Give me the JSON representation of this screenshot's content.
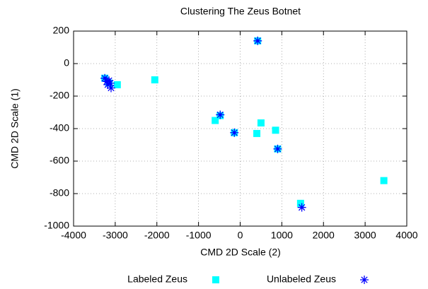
{
  "chart_data": {
    "type": "scatter",
    "title": "Clustering The Zeus Botnet",
    "x_label": "CMD 2D Scale (2)",
    "y_label": "CMD 2D Scale (1)",
    "xlim": [
      -4000,
      4000
    ],
    "xticks": [
      -4000,
      -3000,
      -2000,
      -1000,
      0,
      1000,
      2000,
      3000,
      4000
    ],
    "ylim": [
      -1000,
      200
    ],
    "yticks": [
      -1000,
      -800,
      -600,
      -400,
      -200,
      0,
      200
    ],
    "grid": true,
    "legend": "bottom",
    "series": [
      {
        "name": "Labeled Zeus",
        "color": "#00ffff",
        "marker": "square",
        "x": [
          -3250,
          -3150,
          -2950,
          -2050,
          -600,
          -480,
          -140,
          400,
          500,
          850,
          900,
          1450,
          3450,
          420
        ],
        "values": [
          -90,
          -120,
          -130,
          -100,
          -350,
          -320,
          -425,
          -430,
          -365,
          -410,
          -525,
          -860,
          -720,
          140
        ]
      },
      {
        "name": "Unlabeled Zeus",
        "color": "#0000ff",
        "marker": "star",
        "x": [
          420,
          -3250,
          -3200,
          -3150,
          -3120,
          -3180,
          -3100,
          -480,
          -140,
          900,
          1480
        ],
        "values": [
          140,
          -90,
          -110,
          -105,
          -120,
          -130,
          -150,
          -315,
          -425,
          -525,
          -885
        ]
      }
    ]
  }
}
